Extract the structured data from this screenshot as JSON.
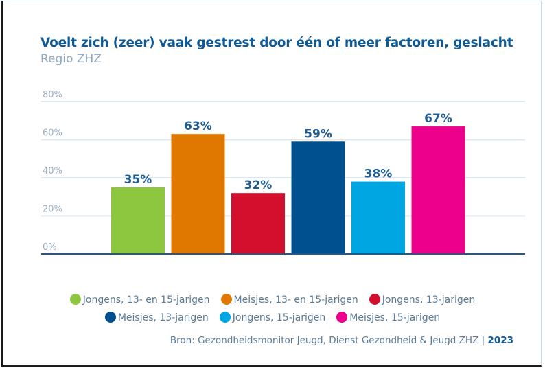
{
  "chart_data": {
    "type": "bar",
    "title": "Voelt zich (zeer) vaak gestrest door één of meer factoren, geslacht",
    "subtitle": "Regio ZHZ",
    "xlabel": "",
    "ylabel": "",
    "ylim": [
      0,
      80
    ],
    "yticks": [
      0,
      20,
      40,
      60,
      80
    ],
    "ytick_labels": [
      "0%",
      "20%",
      "40%",
      "60%",
      "80%"
    ],
    "grid": true,
    "categories": [
      "Jongens, 13- en 15-jarigen",
      "Meisjes, 13- en 15-jarigen",
      "Jongens, 13-jarigen",
      "Meisjes, 13-jarigen",
      "Jongens, 15-jarigen",
      "Meisjes, 15-jarigen"
    ],
    "values": [
      35,
      63,
      32,
      59,
      38,
      67
    ],
    "data_labels": [
      "35%",
      "63%",
      "32%",
      "59%",
      "38%",
      "67%"
    ],
    "colors": [
      "#8dc63f",
      "#e07800",
      "#d40f2e",
      "#00508f",
      "#00a6e2",
      "#ec008c"
    ],
    "legend_position": "bottom",
    "source": "Bron: Gezondheidsmonitor Jeugd, Dienst Gezondheid & Jeugd ZHZ |",
    "year": "2023"
  },
  "colors": {
    "title": "#0f5a96",
    "label": "#1d5c94",
    "grid": "#dde8f1",
    "axis": "#1f5a8f"
  }
}
